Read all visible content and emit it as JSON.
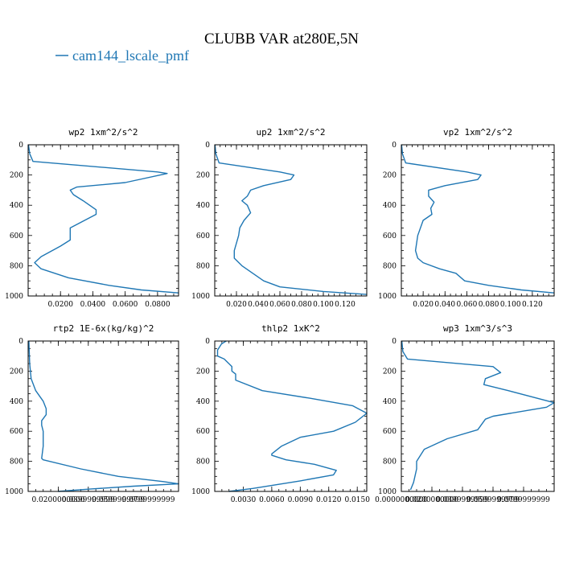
{
  "title": "CLUBB VAR at280E,5N",
  "legend": {
    "label": "cam144_lscale_pmf",
    "color": "#1f77b4"
  },
  "chart_data": [
    {
      "type": "line",
      "title": "wp2  1xm^2/s^2",
      "ylim": [
        1000,
        0
      ],
      "yticks": [
        "0",
        "200",
        "400",
        "600",
        "800",
        "1000"
      ],
      "xlim": [
        0,
        0.093
      ],
      "xticks": [
        {
          "v": 0.02,
          "label": "0.0200"
        },
        {
          "v": 0.04,
          "label": "0.0400"
        },
        {
          "v": 0.06,
          "label": "0.0600"
        },
        {
          "v": 0.08,
          "label": "0.0800"
        }
      ],
      "series": [
        {
          "name": "cam144_lscale_pmf",
          "x": [
            0.0002,
            0.001,
            0.003,
            0.08,
            0.086,
            0.06,
            0.03,
            0.026,
            0.028,
            0.034,
            0.042,
            0.042,
            0.026,
            0.026,
            0.02,
            0.008,
            0.004,
            0.008,
            0.025,
            0.05,
            0.07,
            0.093
          ],
          "y": [
            0,
            60,
            110,
            180,
            190,
            250,
            280,
            300,
            330,
            370,
            430,
            460,
            550,
            630,
            670,
            740,
            780,
            820,
            880,
            930,
            960,
            980
          ]
        }
      ]
    },
    {
      "type": "line",
      "title": "up2  1xm^2/s^2",
      "ylim": [
        1000,
        0
      ],
      "yticks": [
        "0",
        "200",
        "400",
        "600",
        "800",
        "1000"
      ],
      "xlim": [
        0,
        0.14
      ],
      "xticks": [
        {
          "v": 0.02,
          "label": "0.020"
        },
        {
          "v": 0.04,
          "label": "0.040"
        },
        {
          "v": 0.06,
          "label": "0.060"
        },
        {
          "v": 0.08,
          "label": "0.080"
        },
        {
          "v": 0.1,
          "label": "0.100"
        },
        {
          "v": 0.12,
          "label": "0.120"
        }
      ],
      "series": [
        {
          "name": "cam144_lscale_pmf",
          "x": [
            0.0002,
            0.001,
            0.004,
            0.06,
            0.073,
            0.07,
            0.045,
            0.033,
            0.03,
            0.025,
            0.03,
            0.033,
            0.027,
            0.023,
            0.022,
            0.018,
            0.018,
            0.025,
            0.035,
            0.045,
            0.06,
            0.1,
            0.14
          ],
          "y": [
            0,
            60,
            120,
            180,
            200,
            230,
            270,
            300,
            340,
            370,
            400,
            450,
            500,
            550,
            600,
            700,
            750,
            800,
            850,
            900,
            940,
            970,
            990
          ]
        }
      ]
    },
    {
      "type": "line",
      "title": "vp2  1xm^2/s^2",
      "ylim": [
        1000,
        0
      ],
      "yticks": [
        "0",
        "200",
        "400",
        "600",
        "800",
        "1000"
      ],
      "xlim": [
        0,
        0.14
      ],
      "xticks": [
        {
          "v": 0.02,
          "label": "0.020"
        },
        {
          "v": 0.04,
          "label": "0.040"
        },
        {
          "v": 0.06,
          "label": "0.060"
        },
        {
          "v": 0.08,
          "label": "0.080"
        },
        {
          "v": 0.1,
          "label": "0.100"
        },
        {
          "v": 0.12,
          "label": "0.120"
        }
      ],
      "series": [
        {
          "name": "cam144_lscale_pmf",
          "x": [
            0.0002,
            0.001,
            0.004,
            0.06,
            0.073,
            0.07,
            0.04,
            0.025,
            0.025,
            0.03,
            0.027,
            0.028,
            0.02,
            0.015,
            0.013,
            0.015,
            0.02,
            0.035,
            0.05,
            0.058,
            0.08,
            0.11,
            0.14
          ],
          "y": [
            0,
            60,
            120,
            180,
            200,
            230,
            270,
            300,
            340,
            380,
            420,
            460,
            500,
            600,
            700,
            750,
            780,
            820,
            850,
            900,
            930,
            960,
            980
          ]
        }
      ]
    },
    {
      "type": "line",
      "title": "rtp2  1E-6x(kg/kg)^2",
      "ylim": [
        1000,
        0
      ],
      "yticks": [
        "0",
        "200",
        "400",
        "600",
        "800",
        "1000"
      ],
      "xlim": [
        0,
        0.1
      ],
      "xticks": [
        {
          "v": 0.02,
          "label": "0.0200000000"
        },
        {
          "v": 0.04,
          "label": "0.0399999999"
        },
        {
          "v": 0.06,
          "label": "0.0599999999"
        },
        {
          "v": 0.08,
          "label": "0.0799999999"
        }
      ],
      "series": [
        {
          "name": "cam144_lscale_pmf",
          "x": [
            0.0005,
            0.001,
            0.002,
            0.005,
            0.01,
            0.012,
            0.012,
            0.009,
            0.009,
            0.01,
            0.01,
            0.01,
            0.009,
            0.01,
            0.035,
            0.06,
            0.09,
            0.1,
            0.07,
            0.04,
            0.02
          ],
          "y": [
            0,
            150,
            250,
            330,
            400,
            450,
            490,
            530,
            560,
            600,
            650,
            700,
            780,
            790,
            850,
            900,
            935,
            950,
            965,
            985,
            1000
          ]
        }
      ]
    },
    {
      "type": "line",
      "title": "thlp2  1xK^2",
      "ylim": [
        1000,
        0
      ],
      "yticks": [
        "0",
        "200",
        "400",
        "600",
        "800",
        "1000"
      ],
      "xlim": [
        0,
        0.016
      ],
      "xticks": [
        {
          "v": 0.003,
          "label": "0.0030"
        },
        {
          "v": 0.006,
          "label": "0.0060"
        },
        {
          "v": 0.009,
          "label": "0.0090"
        },
        {
          "v": 0.012,
          "label": "0.0120"
        },
        {
          "v": 0.015,
          "label": "0.0150"
        }
      ],
      "series": [
        {
          "name": "cam144_lscale_pmf",
          "x": [
            0.0012,
            0.0007,
            0.0003,
            0.0003,
            0.001,
            0.0018,
            0.0018,
            0.0022,
            0.0022,
            0.005,
            0.01,
            0.0145,
            0.016,
            0.0148,
            0.0125,
            0.009,
            0.007,
            0.006,
            0.006,
            0.0075,
            0.0105,
            0.0128,
            0.0125,
            0.009,
            0.004,
            0.0015
          ],
          "y": [
            0,
            20,
            60,
            100,
            120,
            170,
            200,
            220,
            260,
            330,
            380,
            430,
            480,
            540,
            600,
            640,
            700,
            750,
            760,
            790,
            820,
            860,
            890,
            930,
            980,
            1000
          ]
        }
      ]
    },
    {
      "type": "line",
      "title": "wp3  1xm^3/s^3",
      "ylim": [
        1000,
        0
      ],
      "yticks": [
        "0",
        "200",
        "400",
        "600",
        "800",
        "1000"
      ],
      "xlim": [
        0,
        0.1
      ],
      "xticks": [
        {
          "v": 0.0,
          "label": "0.0000000000"
        },
        {
          "v": 0.02,
          "label": "0.0200000000"
        },
        {
          "v": 0.04,
          "label": "0.0399999999"
        },
        {
          "v": 0.06,
          "label": "0.0599999999"
        },
        {
          "v": 0.08,
          "label": "0.0799999999"
        }
      ],
      "series": [
        {
          "name": "cam144_lscale_pmf",
          "x": [
            0.0003,
            0.001,
            0.004,
            0.06,
            0.065,
            0.055,
            0.054,
            0.07,
            0.1,
            0.095,
            0.06,
            0.055,
            0.05,
            0.03,
            0.015,
            0.01,
            0.01,
            0.008,
            0.006
          ],
          "y": [
            0,
            70,
            120,
            170,
            210,
            250,
            290,
            330,
            410,
            440,
            500,
            520,
            590,
            650,
            720,
            800,
            850,
            940,
            990
          ]
        }
      ]
    }
  ]
}
